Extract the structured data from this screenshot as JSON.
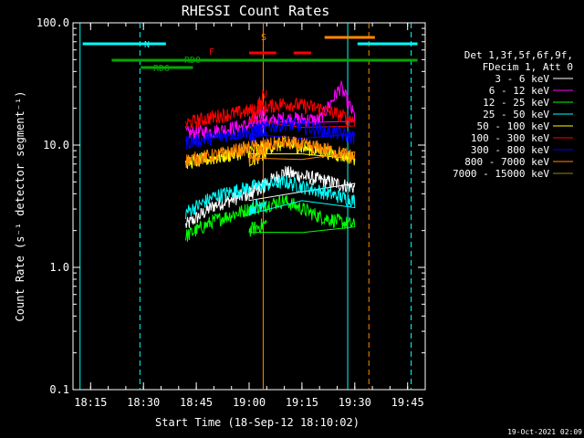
{
  "chart_data": {
    "type": "line",
    "title": "RHESSI Count Rates",
    "xlabel": "Start Time (18-Sep-12 18:10:02)",
    "ylabel": "Count Rate (s⁻¹ detector segment⁻¹)",
    "yscale": "log",
    "ylim": [
      0.1,
      100.0
    ],
    "xlim": [
      "18:10",
      "19:50"
    ],
    "x_ticks": [
      "18:15",
      "18:30",
      "18:45",
      "19:00",
      "19:15",
      "19:30",
      "19:45"
    ],
    "y_ticks": [
      "0.1",
      "1.0",
      "10.0",
      "100.0"
    ],
    "legend_header": [
      "Det 1,3f,5f,6f,9f,",
      "FDecim 1, Att 0"
    ],
    "series": [
      {
        "name": "3 - 6 keV",
        "color": "#ffffff",
        "values": [
          [
            18.42,
            2.2
          ],
          [
            18.5,
            3.2
          ],
          [
            18.6,
            4.0
          ],
          [
            18.7,
            6.0
          ],
          [
            18.8,
            5.2
          ],
          [
            18.9,
            4.5
          ],
          [
            19.0,
            4.0
          ],
          [
            19.05,
            4.8
          ]
        ]
      },
      {
        "name": "6 - 12 keV",
        "color": "#ff00ff",
        "values": [
          [
            18.42,
            12.5
          ],
          [
            18.5,
            13.0
          ],
          [
            18.6,
            14.5
          ],
          [
            18.7,
            16.5
          ],
          [
            18.8,
            16.0
          ],
          [
            18.86,
            30.0
          ],
          [
            18.9,
            17.0
          ],
          [
            19.0,
            15.0
          ],
          [
            19.05,
            20.0
          ]
        ]
      },
      {
        "name": "12 - 25 keV",
        "color": "#00ff00",
        "values": [
          [
            18.42,
            1.8
          ],
          [
            18.5,
            2.4
          ],
          [
            18.6,
            3.0
          ],
          [
            18.7,
            3.5
          ],
          [
            18.8,
            2.6
          ],
          [
            18.9,
            2.2
          ],
          [
            19.0,
            2.0
          ],
          [
            19.05,
            2.3
          ]
        ]
      },
      {
        "name": "25 - 50 keV",
        "color": "#00ffff",
        "values": [
          [
            18.42,
            2.8
          ],
          [
            18.5,
            3.8
          ],
          [
            18.6,
            4.5
          ],
          [
            18.7,
            5.0
          ],
          [
            18.8,
            4.2
          ],
          [
            18.9,
            3.5
          ],
          [
            19.0,
            3.0
          ],
          [
            19.05,
            3.5
          ]
        ]
      },
      {
        "name": "50 - 100 keV",
        "color": "#ffff00",
        "values": [
          [
            18.42,
            7.2
          ],
          [
            18.5,
            7.8
          ],
          [
            18.6,
            9.0
          ],
          [
            18.7,
            10.2
          ],
          [
            18.8,
            9.0
          ],
          [
            18.9,
            7.8
          ],
          [
            19.0,
            7.5
          ],
          [
            19.05,
            8.5
          ]
        ]
      },
      {
        "name": "100 - 300 keV",
        "color": "#ff0000",
        "values": [
          [
            18.42,
            15.0
          ],
          [
            18.5,
            17.0
          ],
          [
            18.6,
            19.0
          ],
          [
            18.7,
            22.0
          ],
          [
            18.8,
            20.0
          ],
          [
            18.9,
            16.0
          ],
          [
            19.0,
            15.0
          ],
          [
            19.05,
            28.0
          ]
        ]
      },
      {
        "name": "300 - 800 keV",
        "color": "#0000ff",
        "values": [
          [
            18.42,
            10.5
          ],
          [
            18.5,
            11.5
          ],
          [
            18.6,
            13.0
          ],
          [
            18.7,
            15.0
          ],
          [
            18.8,
            13.5
          ],
          [
            18.9,
            11.5
          ],
          [
            19.0,
            11.0
          ],
          [
            19.05,
            13.0
          ]
        ]
      },
      {
        "name": "800 - 7000 keV",
        "color": "#ff8800",
        "values": [
          [
            18.42,
            7.5
          ],
          [
            18.5,
            8.2
          ],
          [
            18.6,
            9.5
          ],
          [
            18.7,
            10.5
          ],
          [
            18.8,
            9.5
          ],
          [
            18.9,
            8.0
          ],
          [
            19.0,
            7.5
          ],
          [
            19.05,
            9.0
          ]
        ]
      },
      {
        "name": "7000 - 15000 keV",
        "color": "#998800",
        "values": []
      }
    ],
    "flags": [
      {
        "label": "N",
        "color": "#00ffff"
      },
      {
        "label": "F",
        "color": "#ff0000"
      },
      {
        "label": "S",
        "color": "#ff8800"
      },
      {
        "label": "RD0",
        "color": "#00aa00"
      },
      {
        "label": "RD6",
        "color": "#00aa00"
      }
    ],
    "vertical_lines": [
      {
        "x": "18:12",
        "color": "#00ffff",
        "style": "solid"
      },
      {
        "x": "18:29",
        "color": "#00ffff",
        "style": "dashed"
      },
      {
        "x": "19:04",
        "color": "#ff8800",
        "style": "solid"
      },
      {
        "x": "19:28",
        "color": "#00ffff",
        "style": "solid"
      },
      {
        "x": "19:34",
        "color": "#ff8800",
        "style": "dashed"
      },
      {
        "x": "19:46",
        "color": "#00ffff",
        "style": "dashed"
      }
    ],
    "grid": false,
    "legend_placement": "right"
  },
  "footer": {
    "timestamp": "19-Oct-2021 02:09"
  }
}
